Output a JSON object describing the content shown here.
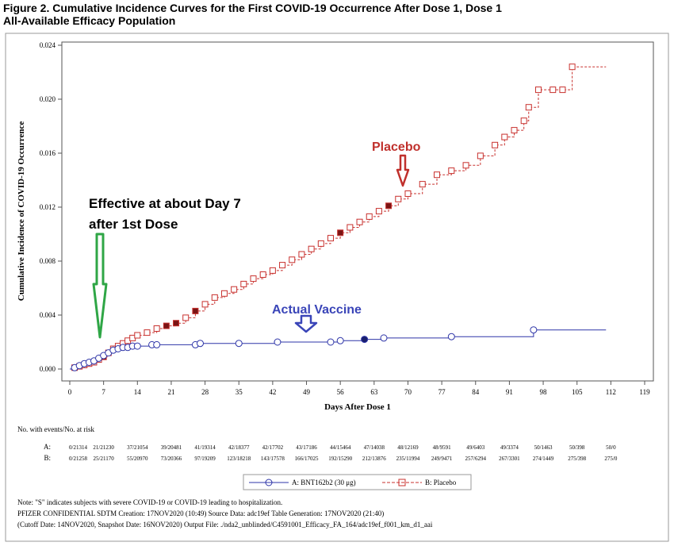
{
  "title": {
    "line1": "Figure 2. Cumulative Incidence Curves for the First COVID-19 Occurrence After Dose 1, Dose 1",
    "line2": "All-Available Efficacy Population"
  },
  "chart_data": {
    "type": "line",
    "xlabel": "Days After Dose 1",
    "ylabel": "Cumulative Incidence of COVID-19 Occurrence",
    "xlim": [
      0,
      119
    ],
    "ylim": [
      0,
      0.024
    ],
    "x_ticks": [
      "0",
      "7",
      "14",
      "21",
      "28",
      "35",
      "42",
      "49",
      "56",
      "63",
      "70",
      "77",
      "84",
      "91",
      "98",
      "105",
      "112",
      "119"
    ],
    "y_ticks": [
      "0.000",
      "0.004",
      "0.008",
      "0.012",
      "0.016",
      "0.020",
      "0.024"
    ],
    "grid": false,
    "series": [
      {
        "name": "A: BNT162b2 (30 μg)",
        "color": "#2e35a8",
        "marker": "circle",
        "points": [
          [
            0,
            0
          ],
          [
            1,
            0.0001
          ],
          [
            2,
            0.00025
          ],
          [
            3,
            0.0004
          ],
          [
            4,
            0.0005
          ],
          [
            5,
            0.0006
          ],
          [
            6,
            0.0008
          ],
          [
            7,
            0.001
          ],
          [
            8,
            0.0012
          ],
          [
            9,
            0.0014
          ],
          [
            10,
            0.0015
          ],
          [
            11,
            0.0016
          ],
          [
            12,
            0.0016
          ],
          [
            13,
            0.0017
          ],
          [
            14,
            0.0017
          ],
          [
            17,
            0.0018
          ],
          [
            18,
            0.0018
          ],
          [
            26,
            0.0018
          ],
          [
            27,
            0.0019
          ],
          [
            35,
            0.0019
          ],
          [
            43,
            0.002
          ],
          [
            54,
            0.002
          ],
          [
            56,
            0.0021
          ],
          [
            61,
            0.0022
          ],
          [
            65,
            0.0023
          ],
          [
            79,
            0.0024
          ],
          [
            96,
            0.0029
          ],
          [
            111,
            0.0029
          ]
        ]
      },
      {
        "name": "B: Placebo",
        "color": "#c8312e",
        "marker": "square",
        "points": [
          [
            0,
            0
          ],
          [
            1,
            0.0001
          ],
          [
            2,
            0.0002
          ],
          [
            3,
            0.0003
          ],
          [
            4,
            0.0004
          ],
          [
            5,
            0.0005
          ],
          [
            6,
            0.0007
          ],
          [
            7,
            0.0009
          ],
          [
            8,
            0.0012
          ],
          [
            9,
            0.0015
          ],
          [
            10,
            0.0017
          ],
          [
            11,
            0.0019
          ],
          [
            12,
            0.0021
          ],
          [
            13,
            0.0023
          ],
          [
            14,
            0.0025
          ],
          [
            16,
            0.0027
          ],
          [
            18,
            0.003
          ],
          [
            20,
            0.0032
          ],
          [
            22,
            0.0034
          ],
          [
            24,
            0.0038
          ],
          [
            26,
            0.0043
          ],
          [
            28,
            0.0048
          ],
          [
            30,
            0.0053
          ],
          [
            32,
            0.0056
          ],
          [
            34,
            0.0059
          ],
          [
            36,
            0.0063
          ],
          [
            38,
            0.0067
          ],
          [
            40,
            0.007
          ],
          [
            42,
            0.0073
          ],
          [
            44,
            0.0077
          ],
          [
            46,
            0.0081
          ],
          [
            48,
            0.0085
          ],
          [
            50,
            0.0089
          ],
          [
            52,
            0.0093
          ],
          [
            54,
            0.0097
          ],
          [
            56,
            0.0101
          ],
          [
            58,
            0.0105
          ],
          [
            60,
            0.0109
          ],
          [
            62,
            0.0113
          ],
          [
            64,
            0.0117
          ],
          [
            66,
            0.0121
          ],
          [
            68,
            0.0126
          ],
          [
            70,
            0.013
          ],
          [
            73,
            0.0137
          ],
          [
            76,
            0.0144
          ],
          [
            79,
            0.0147
          ],
          [
            82,
            0.0151
          ],
          [
            85,
            0.0158
          ],
          [
            88,
            0.0166
          ],
          [
            90,
            0.0172
          ],
          [
            92,
            0.0177
          ],
          [
            94,
            0.0184
          ],
          [
            95,
            0.0194
          ],
          [
            97,
            0.0207
          ],
          [
            100,
            0.0207
          ],
          [
            102,
            0.0207
          ],
          [
            104,
            0.0224
          ],
          [
            111,
            0.0224
          ]
        ]
      }
    ],
    "annotations": {
      "effective_line1": "Effective at about Day 7",
      "effective_line2": "after 1st Dose",
      "placebo": "Placebo",
      "vaccine": "Actual Vaccine"
    },
    "risk_table": {
      "header": "No. with events/No. at risk",
      "rows": [
        {
          "label": "A:",
          "values": [
            "0/21314",
            "21/21230",
            "37/21054",
            "39/20481",
            "41/19314",
            "42/18377",
            "42/17702",
            "43/17186",
            "44/15464",
            "47/14038",
            "48/12169",
            "48/9591",
            "49/6403",
            "49/3374",
            "50/1463",
            "50/398",
            "50/0"
          ]
        },
        {
          "label": "B:",
          "values": [
            "0/21258",
            "25/21170",
            "55/20970",
            "73/20366",
            "97/19209",
            "123/18218",
            "143/17578",
            "166/17025",
            "192/15290",
            "212/13876",
            "235/11994",
            "249/9471",
            "257/6294",
            "267/3301",
            "274/1449",
            "275/398",
            "275/0"
          ]
        }
      ]
    },
    "legend": {
      "position": "bottom",
      "a": "A: BNT162b2 (30 μg)",
      "b": "B: Placebo"
    }
  },
  "footnotes": {
    "line1": "Note: \"S\" indicates subjects with severe COVID-19 or COVID-19 leading to hospitalization.",
    "line2": "PFIZER CONFIDENTIAL  SDTM Creation: 17NOV2020 (10:49)  Source Data: adc19ef  Table Generation: 17NOV2020 (21:40)",
    "line3": "(Cutoff Date: 14NOV2020, Snapshot Date: 16NOV2020) Output File: ./nda2_unblinded/C4591001_Efficacy_FA_164/adc19ef_f001_km_d1_aai"
  }
}
